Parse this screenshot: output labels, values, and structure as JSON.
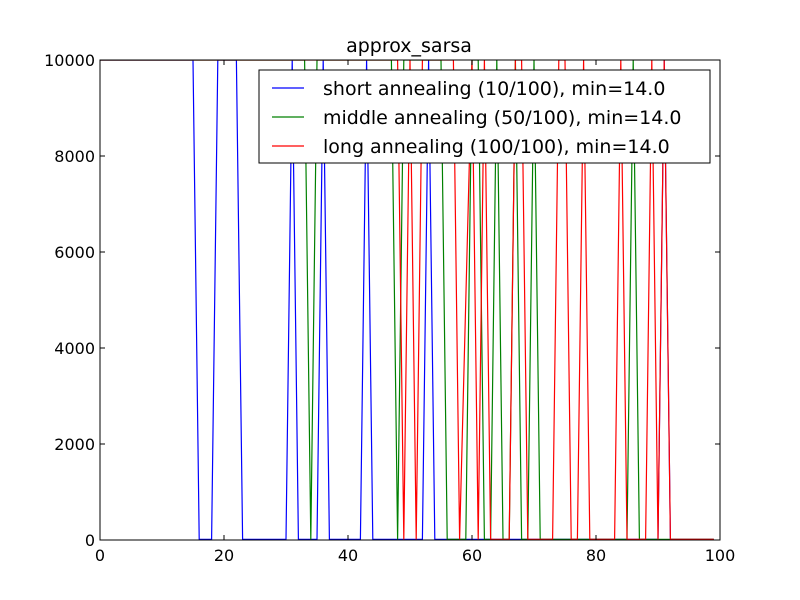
{
  "chart_data": {
    "type": "line",
    "title": "approx_sarsa",
    "xlabel": "",
    "ylabel": "",
    "xlim": [
      0,
      100
    ],
    "ylim": [
      0,
      10000
    ],
    "xticks": [
      0,
      20,
      40,
      60,
      80,
      100
    ],
    "yticks": [
      0,
      2000,
      4000,
      6000,
      8000,
      10000
    ],
    "legend_position": "top-right",
    "series": [
      {
        "name": "short annealing (10/100), min=14.0",
        "color": "#0000ff",
        "points": [
          [
            0,
            10000
          ],
          [
            15,
            10000
          ],
          [
            16,
            14
          ],
          [
            18,
            14
          ],
          [
            19,
            10000
          ],
          [
            22,
            10000
          ],
          [
            23,
            14
          ],
          [
            30,
            14
          ],
          [
            31,
            10000
          ],
          [
            32,
            14
          ],
          [
            35,
            14
          ],
          [
            36,
            10000
          ],
          [
            37,
            14
          ],
          [
            42,
            14
          ],
          [
            43,
            10000
          ],
          [
            44,
            14
          ],
          [
            52,
            14
          ],
          [
            53,
            10000
          ],
          [
            54,
            14
          ],
          [
            90,
            14
          ],
          [
            91,
            10000
          ],
          [
            92,
            14
          ],
          [
            99,
            14
          ]
        ]
      },
      {
        "name": "middle annealing (50/100), min=14.0",
        "color": "#008000",
        "points": [
          [
            0,
            10000
          ],
          [
            33,
            10000
          ],
          [
            34,
            14
          ],
          [
            35,
            10000
          ],
          [
            47,
            10000
          ],
          [
            48,
            14
          ],
          [
            49,
            10000
          ],
          [
            55,
            10000
          ],
          [
            56,
            14
          ],
          [
            59,
            14
          ],
          [
            60,
            10000
          ],
          [
            61,
            10000
          ],
          [
            62,
            14
          ],
          [
            63,
            14
          ],
          [
            64,
            10000
          ],
          [
            65,
            14
          ],
          [
            66,
            14
          ],
          [
            67,
            10000
          ],
          [
            68,
            14
          ],
          [
            69,
            14
          ],
          [
            70,
            10000
          ],
          [
            71,
            14
          ],
          [
            85,
            14
          ],
          [
            86,
            10000
          ],
          [
            87,
            14
          ],
          [
            99,
            14
          ]
        ]
      },
      {
        "name": "long annealing (100/100), min=14.0",
        "color": "#ff0000",
        "points": [
          [
            0,
            10000
          ],
          [
            48,
            10000
          ],
          [
            49,
            14
          ],
          [
            50,
            10000
          ],
          [
            51,
            14
          ],
          [
            52,
            10000
          ],
          [
            57,
            10000
          ],
          [
            58,
            14
          ],
          [
            60,
            10000
          ],
          [
            61,
            14
          ],
          [
            62,
            10000
          ],
          [
            63,
            14
          ],
          [
            66,
            14
          ],
          [
            67,
            10000
          ],
          [
            68,
            10000
          ],
          [
            69,
            14
          ],
          [
            73,
            14
          ],
          [
            74,
            10000
          ],
          [
            75,
            10000
          ],
          [
            76,
            14
          ],
          [
            77,
            14
          ],
          [
            78,
            10000
          ],
          [
            79,
            14
          ],
          [
            83,
            14
          ],
          [
            84,
            10000
          ],
          [
            85,
            14
          ],
          [
            88,
            14
          ],
          [
            89,
            10000
          ],
          [
            90,
            14
          ],
          [
            91,
            10000
          ],
          [
            92,
            14
          ],
          [
            99,
            14
          ]
        ]
      }
    ]
  }
}
